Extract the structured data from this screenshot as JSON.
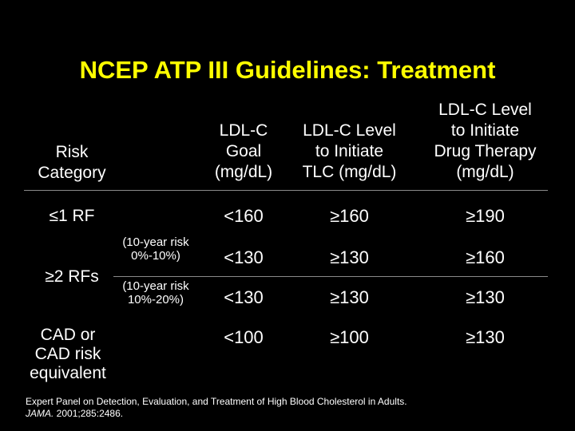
{
  "title": "NCEP ATP III Guidelines: Treatment",
  "headers": {
    "risk_category": "Risk\nCategory",
    "ldl_goal": "LDL-C\nGoal\n(mg/dL)",
    "ldl_tlc": "LDL-C Level\nto Initiate\nTLC (mg/dL)",
    "ldl_drug": "LDL-C Level\nto Initiate\nDrug Therapy\n(mg/dL)"
  },
  "rows": [
    {
      "category": "≤1 RF",
      "note": "",
      "goal": "<160",
      "tlc": "≥160",
      "drug": "≥190"
    },
    {
      "category": "≥2 RFs",
      "note": "(10-year risk\n0%-10%)",
      "goal": "<130",
      "tlc": "≥130",
      "drug": "≥160"
    },
    {
      "category": "",
      "note": "(10-year risk\n10%-20%)",
      "goal": "<130",
      "tlc": "≥130",
      "drug": "≥130"
    },
    {
      "category": "CAD or\nCAD risk\nequivalent",
      "note": "",
      "goal": "<100",
      "tlc": "≥100",
      "drug": "≥130"
    }
  ],
  "footer": {
    "line1": "Expert Panel on Detection, Evaluation, and Treatment of High Blood Cholesterol in Adults.",
    "journal": "JAMA.",
    "citation": " 2001;285:2486."
  }
}
